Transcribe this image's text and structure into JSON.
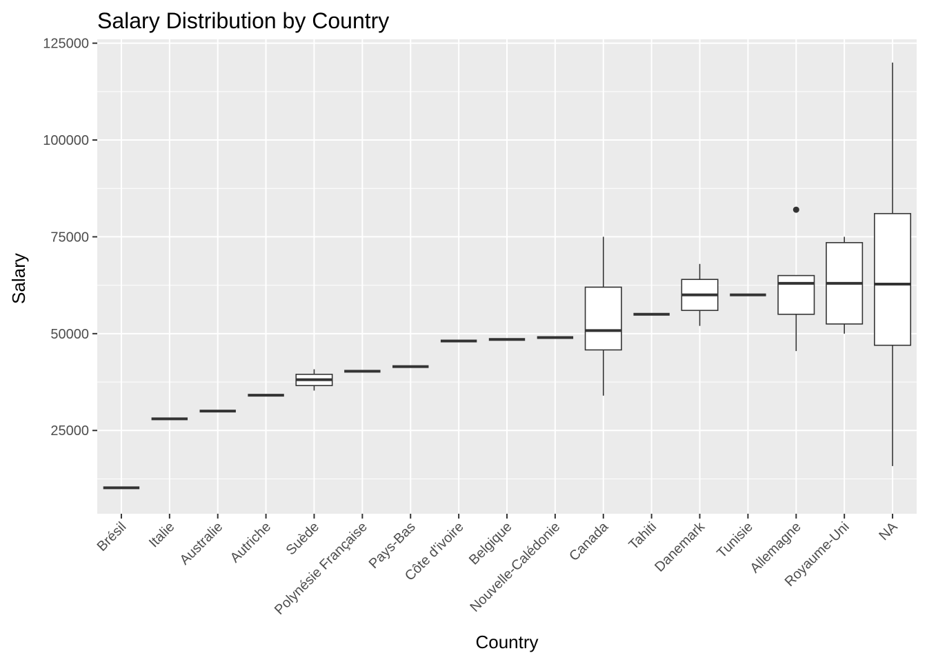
{
  "chart_data": {
    "type": "boxplot",
    "title": "Salary Distribution by Country",
    "xlabel": "Country",
    "ylabel": "Salary",
    "ylim": [
      3500,
      126000
    ],
    "yticks": [
      25000,
      50000,
      75000,
      100000,
      125000
    ],
    "grid": true,
    "categories": [
      "Brésil",
      "Italie",
      "Australie",
      "Autriche",
      "Suède",
      "Polynésie Française",
      "Pays-Bas",
      "Côte d'ivoire",
      "Belgique",
      "Nouvelle-Calédonie",
      "Canada",
      "Tahiti",
      "Danemark",
      "Tunisie",
      "Allemagne",
      "Royaume-Uni",
      "NA"
    ],
    "boxes": [
      {
        "category": "Brésil",
        "min": 10200,
        "q1": 10200,
        "median": 10200,
        "q3": 10200,
        "max": 10200,
        "outliers": []
      },
      {
        "category": "Italie",
        "min": 28000,
        "q1": 28000,
        "median": 28000,
        "q3": 28000,
        "max": 28000,
        "outliers": []
      },
      {
        "category": "Australie",
        "min": 30000,
        "q1": 30000,
        "median": 30000,
        "q3": 30000,
        "max": 30000,
        "outliers": []
      },
      {
        "category": "Autriche",
        "min": 34100,
        "q1": 34100,
        "median": 34100,
        "q3": 34100,
        "max": 34100,
        "outliers": []
      },
      {
        "category": "Suède",
        "min": 35300,
        "q1": 36600,
        "median": 38100,
        "q3": 39500,
        "max": 40800,
        "outliers": []
      },
      {
        "category": "Polynésie Française",
        "min": 40300,
        "q1": 40300,
        "median": 40300,
        "q3": 40300,
        "max": 40300,
        "outliers": []
      },
      {
        "category": "Pays-Bas",
        "min": 41500,
        "q1": 41500,
        "median": 41500,
        "q3": 41500,
        "max": 41500,
        "outliers": []
      },
      {
        "category": "Côte d'ivoire",
        "min": 48100,
        "q1": 48100,
        "median": 48100,
        "q3": 48100,
        "max": 48100,
        "outliers": []
      },
      {
        "category": "Belgique",
        "min": 48500,
        "q1": 48500,
        "median": 48500,
        "q3": 48500,
        "max": 48500,
        "outliers": []
      },
      {
        "category": "Nouvelle-Calédonie",
        "min": 49000,
        "q1": 49000,
        "median": 49000,
        "q3": 49000,
        "max": 49000,
        "outliers": []
      },
      {
        "category": "Canada",
        "min": 34000,
        "q1": 45800,
        "median": 50800,
        "q3": 62000,
        "max": 75000,
        "outliers": []
      },
      {
        "category": "Tahiti",
        "min": 55000,
        "q1": 55000,
        "median": 55000,
        "q3": 55000,
        "max": 55000,
        "outliers": []
      },
      {
        "category": "Danemark",
        "min": 52000,
        "q1": 56000,
        "median": 60000,
        "q3": 64000,
        "max": 68000,
        "outliers": []
      },
      {
        "category": "Tunisie",
        "min": 60000,
        "q1": 60000,
        "median": 60000,
        "q3": 60000,
        "max": 60000,
        "outliers": []
      },
      {
        "category": "Allemagne",
        "min": 45500,
        "q1": 55000,
        "median": 63000,
        "q3": 65000,
        "max": 65000,
        "outliers": [
          82000
        ]
      },
      {
        "category": "Royaume-Uni",
        "min": 50000,
        "q1": 52500,
        "median": 63000,
        "q3": 73500,
        "max": 75000,
        "outliers": []
      },
      {
        "category": "NA",
        "min": 15800,
        "q1": 47000,
        "median": 62800,
        "q3": 81000,
        "max": 120000,
        "outliers": []
      }
    ]
  }
}
